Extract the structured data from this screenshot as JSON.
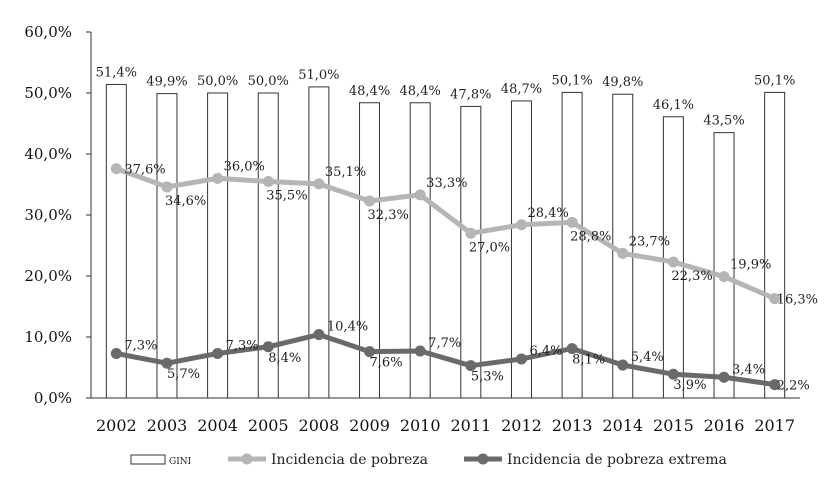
{
  "chart_data": {
    "type": "bar",
    "categories": [
      "2002",
      "2003",
      "2004",
      "2005",
      "2008",
      "2009",
      "2010",
      "2011",
      "2012",
      "2013",
      "2014",
      "2015",
      "2016",
      "2017"
    ],
    "ylim": [
      0,
      60
    ],
    "yticks": [
      0,
      10,
      20,
      30,
      40,
      50,
      60
    ],
    "ytick_labels": [
      "0,0%",
      "10,0%",
      "20,0%",
      "30,0%",
      "40,0%",
      "50,0%",
      "60,0%"
    ],
    "series": [
      {
        "name": "GINI",
        "type": "bar",
        "color": "#ffffff",
        "values": [
          51.4,
          49.9,
          50.0,
          50.0,
          51.0,
          48.4,
          48.4,
          47.8,
          48.7,
          50.1,
          49.8,
          46.1,
          43.5,
          50.1
        ],
        "labels": [
          "51,4%",
          "49,9%",
          "50,0%",
          "50,0%",
          "51,0%",
          "48,4%",
          "48,4%",
          "47,8%",
          "48,7%",
          "50,1%",
          "49,8%",
          "46,1%",
          "43,5%",
          "50,1%"
        ]
      },
      {
        "name": "Incidencia de pobreza",
        "type": "line",
        "color": "#b5b5b5",
        "values": [
          37.6,
          34.6,
          36.0,
          35.5,
          35.1,
          32.3,
          33.3,
          27.0,
          28.4,
          28.8,
          23.7,
          22.3,
          19.9,
          16.3
        ],
        "labels": [
          "37,6%",
          "34,6%",
          "36,0%",
          "35,5%",
          "35,1%",
          "32,3%",
          "33,3%",
          "27,0%",
          "28,4%",
          "28,8%",
          "23,7%",
          "22,3%",
          "19,9%",
          "16,3%"
        ]
      },
      {
        "name": "Incidencia de pobreza extrema",
        "type": "line",
        "color": "#6a6a6a",
        "values": [
          7.3,
          5.7,
          7.3,
          8.4,
          10.4,
          7.6,
          7.7,
          5.3,
          6.4,
          8.1,
          5.4,
          3.9,
          3.4,
          2.2
        ],
        "labels": [
          "7,3%",
          "5,7%",
          "7,3%",
          "8,4%",
          "10,4%",
          "7,6%",
          "7,7%",
          "5,3%",
          "6,4%",
          "8,1%",
          "5,4%",
          "3,9%",
          "3,4%",
          "2,2%"
        ]
      }
    ],
    "grid": false,
    "legend_position": "bottom"
  }
}
